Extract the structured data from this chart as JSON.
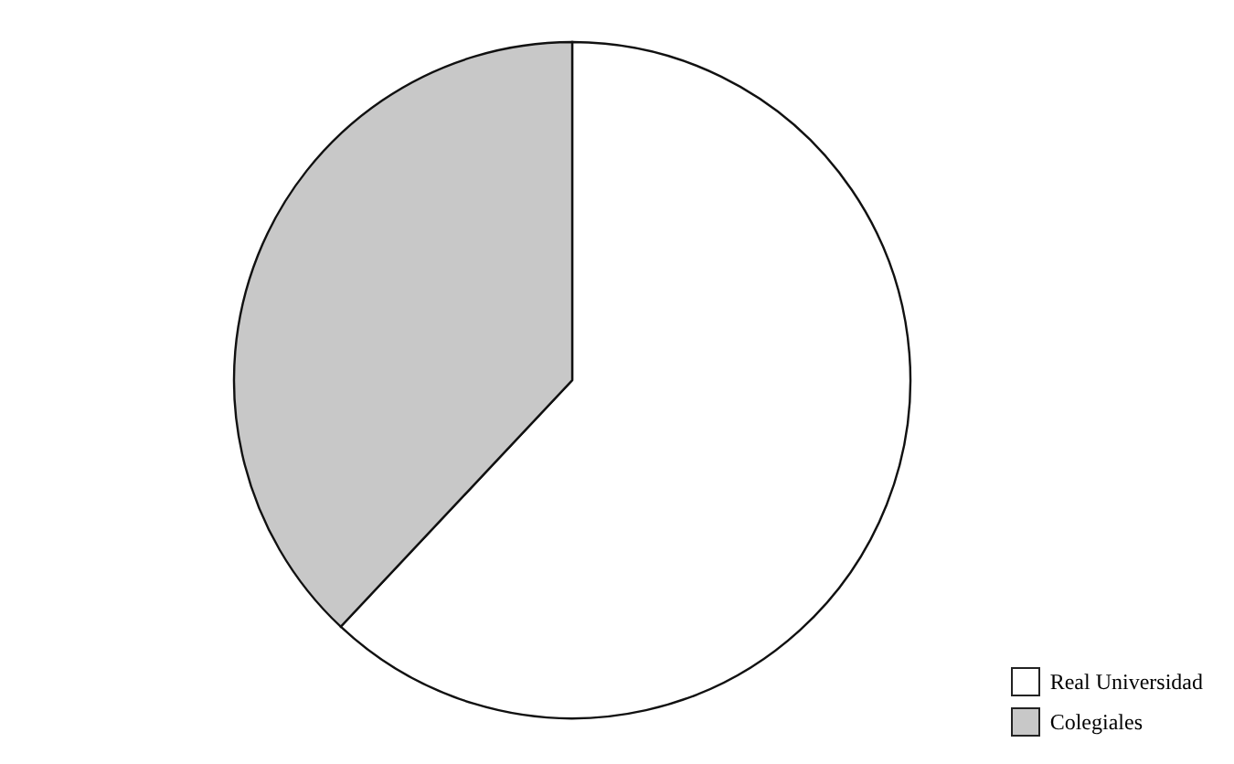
{
  "chart_data": {
    "type": "pie",
    "categories": [
      "Real Universidad",
      "Colegiales"
    ],
    "values": [
      62,
      38
    ],
    "colors": [
      "#ffffff",
      "#c8c8c8"
    ],
    "legend": "bottom right"
  }
}
